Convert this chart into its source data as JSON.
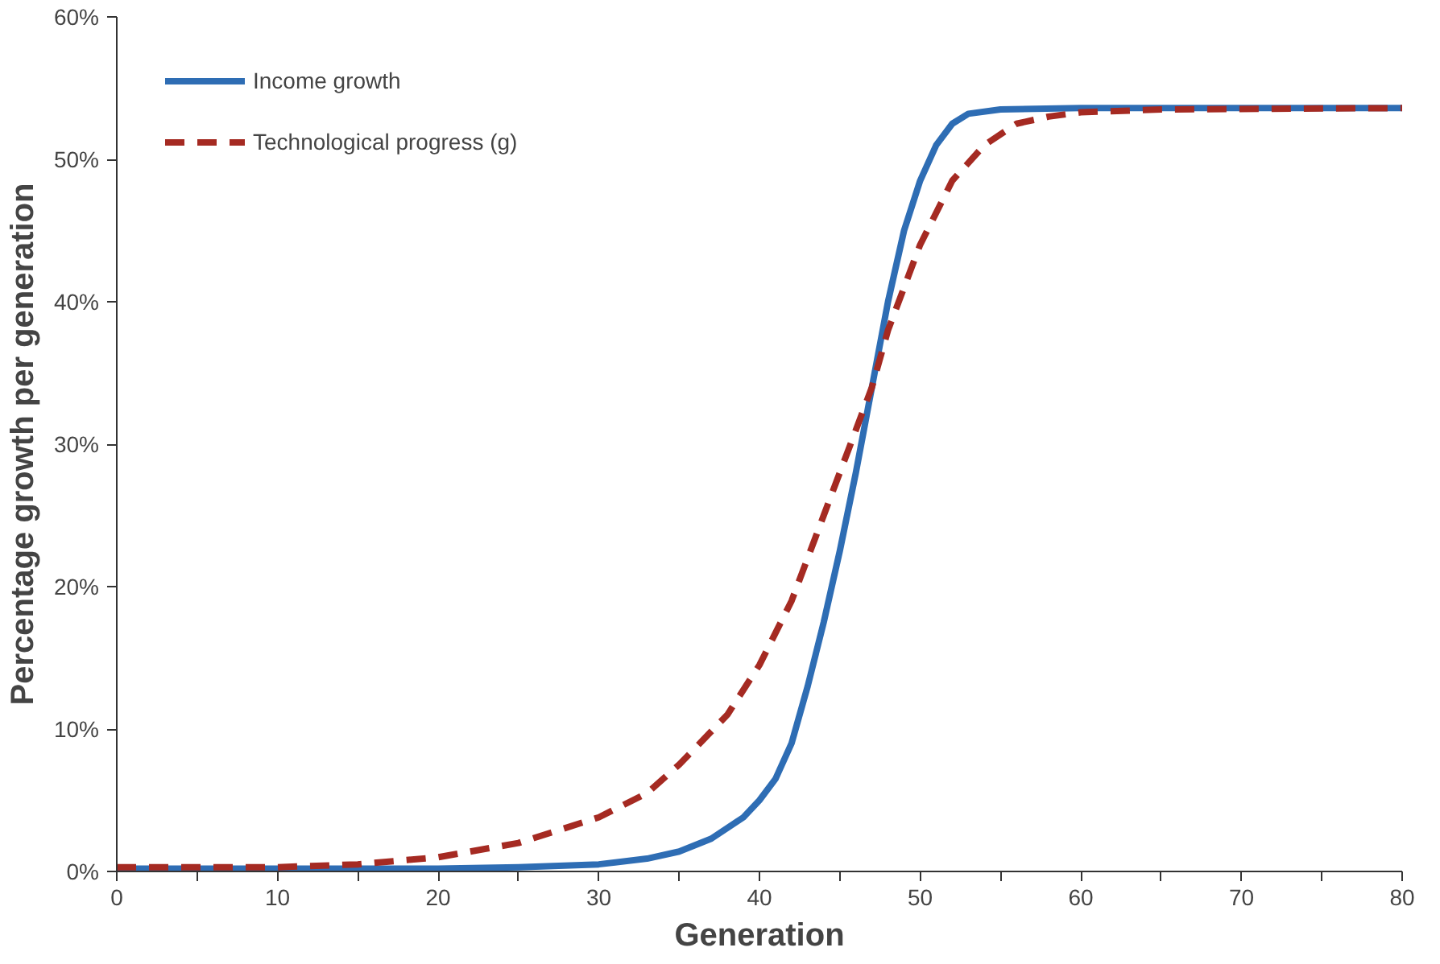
{
  "chart_data": {
    "type": "line",
    "xlabel": "Generation",
    "ylabel": "Percentage growth per generation",
    "xlim": [
      0,
      80
    ],
    "ylim": [
      0,
      60
    ],
    "xticks": [
      0,
      {
        "value": 5,
        "label": null
      },
      10,
      {
        "value": 15,
        "label": null
      },
      20,
      {
        "value": 25,
        "label": null
      },
      30,
      {
        "value": 35,
        "label": null
      },
      40,
      {
        "value": 45,
        "label": null
      },
      50,
      {
        "value": 55,
        "label": null
      },
      60,
      {
        "value": 65,
        "label": null
      },
      70,
      {
        "value": 75,
        "label": null
      },
      80
    ],
    "yticks": [
      {
        "value": 0,
        "label": "0%"
      },
      {
        "value": 10,
        "label": "10%"
      },
      {
        "value": 20,
        "label": "20%"
      },
      {
        "value": 30,
        "label": "30%"
      },
      {
        "value": 40,
        "label": "40%"
      },
      {
        "value": 50,
        "label": "50%"
      },
      {
        "value": 60,
        "label": "60%"
      }
    ],
    "grid": false,
    "legend": "top left",
    "marker": "none",
    "series": [
      {
        "name": "Income growth",
        "color": "#2e6db4",
        "line_style": "solid",
        "x": [
          0,
          10,
          20,
          25,
          30,
          33,
          35,
          37,
          39,
          40,
          41,
          42,
          43,
          44,
          45,
          46,
          47,
          48,
          49,
          50,
          51,
          52,
          53,
          55,
          60,
          80
        ],
        "values": [
          0.2,
          0.2,
          0.2,
          0.3,
          0.5,
          0.9,
          1.4,
          2.3,
          3.8,
          5,
          6.5,
          9,
          13,
          17.5,
          22.5,
          28,
          34,
          40,
          45,
          48.5,
          51,
          52.5,
          53.2,
          53.5,
          53.6,
          53.6
        ]
      },
      {
        "name": "Technological progress (g)",
        "color": "#a52a22",
        "line_style": "dashed",
        "x": [
          0,
          10,
          15,
          20,
          25,
          30,
          33,
          35,
          38,
          40,
          42,
          44,
          46,
          47,
          48,
          50,
          52,
          54,
          56,
          58,
          60,
          65,
          80
        ],
        "values": [
          0.3,
          0.3,
          0.5,
          1,
          2,
          3.8,
          5.5,
          7.5,
          11,
          14.5,
          19,
          25,
          31,
          34,
          38,
          44,
          48.5,
          51,
          52.5,
          53,
          53.3,
          53.5,
          53.6
        ]
      }
    ]
  }
}
